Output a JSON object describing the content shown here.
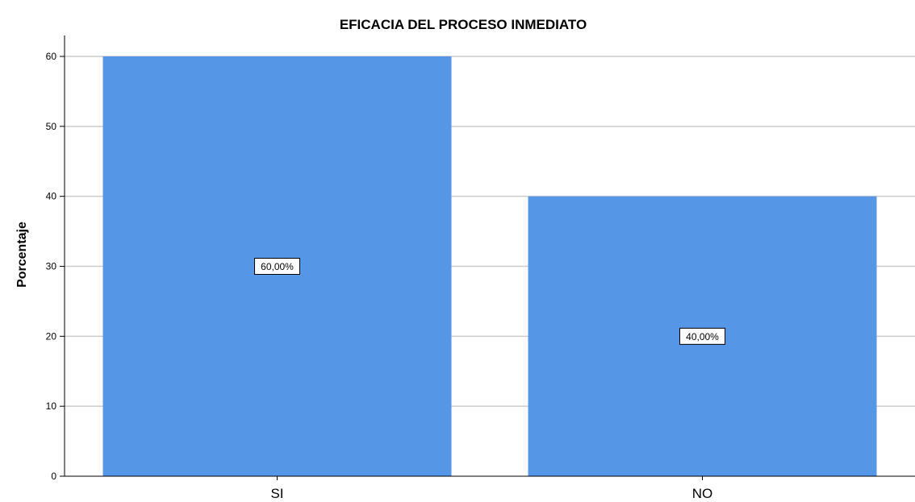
{
  "chart_data": {
    "type": "bar",
    "title": "EFICACIA DEL PROCESO INMEDIATO",
    "xlabel": "",
    "ylabel": "Porcentaje",
    "categories": [
      "SI",
      "NO"
    ],
    "values": [
      60,
      40
    ],
    "data_labels": [
      "60,00%",
      "40,00%"
    ],
    "ylim": [
      0,
      60
    ],
    "yticks": [
      0,
      10,
      20,
      30,
      40,
      50,
      60
    ],
    "grid": true,
    "bar_color": "#5596e6",
    "grid_color": "#cccccc"
  }
}
